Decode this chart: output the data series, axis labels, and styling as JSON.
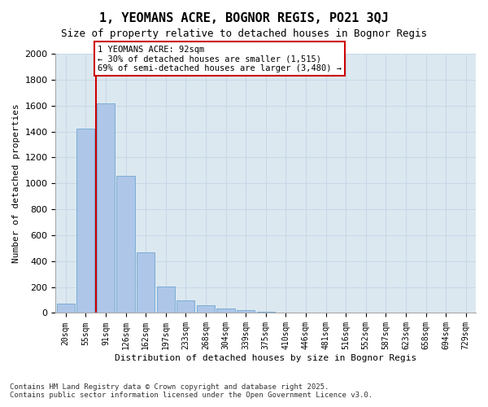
{
  "title": "1, YEOMANS ACRE, BOGNOR REGIS, PO21 3QJ",
  "subtitle": "Size of property relative to detached houses in Bognor Regis",
  "xlabel": "Distribution of detached houses by size in Bognor Regis",
  "ylabel": "Number of detached properties",
  "categories": [
    "20sqm",
    "55sqm",
    "91sqm",
    "126sqm",
    "162sqm",
    "197sqm",
    "233sqm",
    "268sqm",
    "304sqm",
    "339sqm",
    "375sqm",
    "410sqm",
    "446sqm",
    "481sqm",
    "516sqm",
    "552sqm",
    "587sqm",
    "623sqm",
    "658sqm",
    "694sqm",
    "729sqm"
  ],
  "values": [
    75,
    1420,
    1620,
    1060,
    470,
    205,
    100,
    60,
    35,
    20,
    10,
    5,
    2,
    1,
    0,
    0,
    0,
    0,
    0,
    0,
    0
  ],
  "bar_color": "#aec6e8",
  "bar_edge_color": "#7aadd4",
  "grid_color": "#c8d8e8",
  "background_color": "#dce8f0",
  "property_line_x": 2,
  "property_size": "92sqm",
  "annotation_text": "1 YEOMANS ACRE: 92sqm\n← 30% of detached houses are smaller (1,515)\n69% of semi-detached houses are larger (3,480) →",
  "annotation_box_color": "#ffffff",
  "annotation_box_edge_color": "#cc0000",
  "annotation_text_color": "#000000",
  "vline_color": "#cc0000",
  "footer_line1": "Contains HM Land Registry data © Crown copyright and database right 2025.",
  "footer_line2": "Contains public sector information licensed under the Open Government Licence v3.0.",
  "ylim": [
    0,
    2000
  ],
  "yticks": [
    0,
    200,
    400,
    600,
    800,
    1000,
    1200,
    1400,
    1600,
    1800,
    2000
  ]
}
